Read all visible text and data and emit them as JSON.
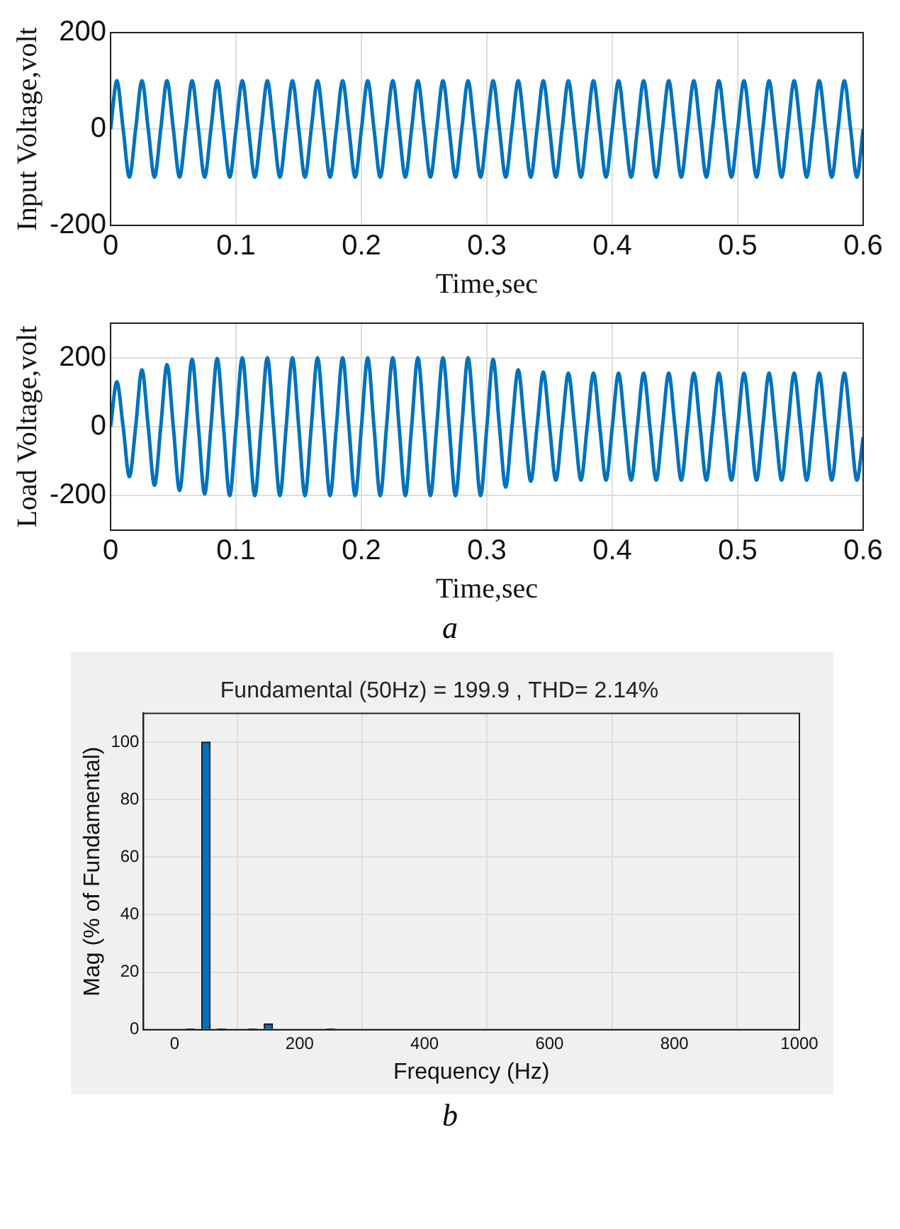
{
  "chart_data": [
    {
      "type": "line",
      "ylabel": "Input Voltage,volt",
      "xlabel": "Time,sec",
      "xlim": [
        0,
        0.6
      ],
      "xticks": [
        0,
        0.1,
        0.2,
        0.3,
        0.4,
        0.5,
        0.6
      ],
      "ylim": [
        -200,
        200
      ],
      "yticks": [
        -200,
        0,
        200
      ],
      "grid": true,
      "x": [
        0,
        0.005,
        0.01,
        0.015,
        0.02,
        0.025,
        0.03,
        0.035,
        0.04,
        0.045,
        0.05,
        0.055,
        0.06,
        0.065,
        0.07,
        0.075,
        0.08,
        0.085,
        0.09,
        0.095,
        0.1,
        0.105,
        0.11,
        0.115,
        0.12,
        0.125,
        0.13,
        0.135,
        0.14,
        0.145,
        0.15,
        0.155,
        0.16,
        0.165,
        0.17,
        0.175,
        0.18,
        0.185,
        0.19,
        0.195,
        0.2,
        0.205,
        0.21,
        0.215,
        0.22,
        0.225,
        0.23,
        0.235,
        0.24,
        0.245,
        0.25,
        0.255,
        0.26,
        0.265,
        0.27,
        0.275,
        0.28,
        0.285,
        0.29,
        0.295,
        0.3,
        0.305,
        0.31,
        0.315,
        0.32,
        0.325,
        0.33,
        0.335,
        0.34,
        0.345,
        0.35,
        0.355,
        0.36,
        0.365,
        0.37,
        0.375,
        0.38,
        0.385,
        0.39,
        0.395,
        0.4,
        0.405,
        0.41,
        0.415,
        0.42,
        0.425,
        0.43,
        0.435,
        0.44,
        0.445,
        0.45,
        0.455,
        0.46,
        0.465,
        0.47,
        0.475,
        0.48,
        0.485,
        0.49,
        0.495,
        0.5,
        0.505,
        0.51,
        0.515,
        0.52,
        0.525,
        0.53,
        0.535,
        0.54,
        0.545,
        0.55,
        0.555,
        0.56,
        0.565,
        0.57,
        0.575,
        0.58,
        0.585,
        0.59,
        0.595,
        0.6
      ],
      "series": [
        {
          "color": "#0072bd",
          "values": [
            0,
            100,
            0,
            -100,
            0,
            100,
            0,
            -100,
            0,
            100,
            0,
            -100,
            0,
            100,
            0,
            -100,
            0,
            100,
            0,
            -100,
            0,
            100,
            0,
            -100,
            0,
            100,
            0,
            -100,
            0,
            100,
            0,
            -100,
            0,
            100,
            0,
            -100,
            0,
            100,
            0,
            -100,
            0,
            100,
            0,
            -100,
            0,
            100,
            0,
            -100,
            0,
            100,
            0,
            -100,
            0,
            100,
            0,
            -100,
            0,
            100,
            0,
            -100,
            0,
            100,
            0,
            -100,
            0,
            100,
            0,
            -100,
            0,
            100,
            0,
            -100,
            0,
            100,
            0,
            -100,
            0,
            100,
            0,
            -100,
            0,
            100,
            0,
            -100,
            0,
            100,
            0,
            -100,
            0,
            100,
            0,
            -100,
            0,
            100,
            0,
            -100,
            0,
            100,
            0,
            -100,
            0,
            100,
            0,
            -100,
            0,
            100,
            0,
            -100,
            0,
            100,
            0,
            -100,
            0,
            100,
            0,
            -100,
            0,
            100,
            0,
            -100,
            0
          ]
        }
      ]
    },
    {
      "type": "line",
      "ylabel": "Load Voltage,volt",
      "xlabel": "Time,sec",
      "xlim": [
        0,
        0.6
      ],
      "xticks": [
        0,
        0.1,
        0.2,
        0.3,
        0.4,
        0.5,
        0.6
      ],
      "ylim": [
        -300,
        300
      ],
      "yticks": [
        -200,
        0,
        200
      ],
      "grid": true,
      "annotations": [
        "a"
      ],
      "x": [
        0,
        0.005,
        0.01,
        0.015,
        0.02,
        0.025,
        0.03,
        0.035,
        0.04,
        0.045,
        0.05,
        0.055,
        0.06,
        0.065,
        0.07,
        0.075,
        0.08,
        0.085,
        0.09,
        0.095,
        0.1,
        0.105,
        0.11,
        0.115,
        0.12,
        0.125,
        0.13,
        0.135,
        0.14,
        0.145,
        0.15,
        0.155,
        0.16,
        0.165,
        0.17,
        0.175,
        0.18,
        0.185,
        0.19,
        0.195,
        0.2,
        0.205,
        0.21,
        0.215,
        0.22,
        0.225,
        0.23,
        0.235,
        0.24,
        0.245,
        0.25,
        0.255,
        0.26,
        0.265,
        0.27,
        0.275,
        0.28,
        0.285,
        0.29,
        0.295,
        0.3,
        0.305,
        0.31,
        0.315,
        0.32,
        0.325,
        0.33,
        0.335,
        0.34,
        0.345,
        0.35,
        0.355,
        0.36,
        0.365,
        0.37,
        0.375,
        0.38,
        0.385,
        0.39,
        0.395,
        0.4,
        0.405,
        0.41,
        0.415,
        0.42,
        0.425,
        0.43,
        0.435,
        0.44,
        0.445,
        0.45,
        0.455,
        0.46,
        0.465,
        0.47,
        0.475,
        0.48,
        0.485,
        0.49,
        0.495,
        0.5,
        0.505,
        0.51,
        0.515,
        0.52,
        0.525,
        0.53,
        0.535,
        0.54,
        0.545,
        0.55,
        0.555,
        0.56,
        0.565,
        0.57,
        0.575,
        0.58,
        0.585,
        0.59,
        0.595,
        0.6
      ],
      "series": [
        {
          "color": "#0072bd",
          "values": [
            0,
            130,
            0,
            -145,
            0,
            165,
            0,
            -170,
            0,
            180,
            0,
            -185,
            0,
            195,
            0,
            -195,
            0,
            198,
            0,
            -200,
            0,
            200,
            0,
            -200,
            0,
            200,
            0,
            -200,
            0,
            200,
            0,
            -200,
            0,
            200,
            0,
            -200,
            0,
            200,
            0,
            -200,
            0,
            200,
            0,
            -200,
            0,
            200,
            0,
            -200,
            0,
            200,
            0,
            -200,
            0,
            200,
            0,
            -200,
            0,
            200,
            0,
            -200,
            0,
            195,
            0,
            -175,
            0,
            165,
            0,
            -158,
            0,
            158,
            0,
            -155,
            0,
            155,
            0,
            -155,
            0,
            155,
            0,
            -155,
            0,
            155,
            0,
            -155,
            0,
            155,
            0,
            -155,
            0,
            155,
            0,
            -155,
            0,
            155,
            0,
            -155,
            0,
            155,
            0,
            -155,
            0,
            155,
            0,
            -155,
            0,
            155,
            0,
            -155,
            0,
            155,
            0,
            -155,
            0,
            155,
            0,
            -155,
            0,
            155,
            0,
            -155,
            -30
          ]
        }
      ]
    },
    {
      "type": "bar",
      "title": "Fundamental (50Hz) = 199.9 , THD= 2.14%",
      "xlabel": "Frequency (Hz)",
      "ylabel": "Mag (% of Fundamental)",
      "xlim": [
        -50,
        1000
      ],
      "xticks": [
        0,
        200,
        400,
        600,
        800,
        1000
      ],
      "ylim": [
        0,
        110
      ],
      "yticks": [
        0,
        20,
        40,
        60,
        80,
        100
      ],
      "grid": true,
      "annotations": [
        "b"
      ],
      "x": [
        25,
        50,
        75,
        125,
        150,
        250
      ],
      "series": [
        {
          "color": "#0072bd",
          "values": [
            0.3,
            100,
            0.3,
            0.3,
            2,
            0.3
          ]
        }
      ]
    }
  ]
}
